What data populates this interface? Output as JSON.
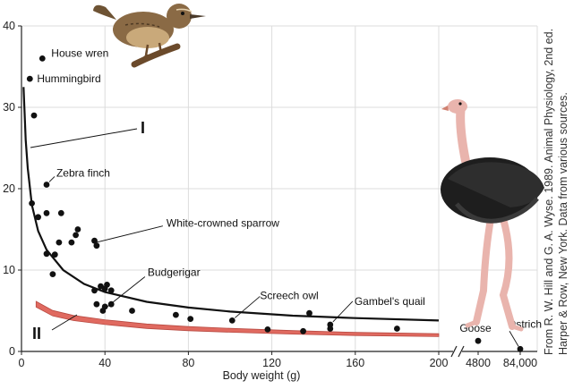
{
  "chart_data": {
    "type": "scatter",
    "xlabel": "Body weight (g)",
    "ylabel": "",
    "xlim": [
      0,
      200
    ],
    "ylim": [
      0,
      40
    ],
    "x_ticks": [
      "0",
      "40",
      "80",
      "120",
      "160",
      "200"
    ],
    "y_ticks": [
      "0",
      "10",
      "20",
      "30",
      "40"
    ],
    "extra_x_ticks": [
      "4800",
      "84,000"
    ],
    "grid": true,
    "points": [
      {
        "x": 10,
        "y": 36,
        "label": "House wren"
      },
      {
        "x": 4,
        "y": 33.5,
        "label": "Hummingbird"
      },
      {
        "x": 6,
        "y": 29
      },
      {
        "x": 12,
        "y": 20.5,
        "label": "Zebra finch"
      },
      {
        "x": 5,
        "y": 18.2
      },
      {
        "x": 8,
        "y": 16.5
      },
      {
        "x": 12,
        "y": 17
      },
      {
        "x": 19,
        "y": 17
      },
      {
        "x": 27,
        "y": 15
      },
      {
        "x": 26,
        "y": 14.3
      },
      {
        "x": 24,
        "y": 13.4
      },
      {
        "x": 18,
        "y": 13.4
      },
      {
        "x": 35,
        "y": 13.6
      },
      {
        "x": 36,
        "y": 13,
        "label": "White-crowned sparrow"
      },
      {
        "x": 12,
        "y": 12
      },
      {
        "x": 16,
        "y": 11.9
      },
      {
        "x": 15,
        "y": 9.5
      },
      {
        "x": 35,
        "y": 7.5
      },
      {
        "x": 38,
        "y": 8
      },
      {
        "x": 41,
        "y": 8.2
      },
      {
        "x": 40,
        "y": 7.7
      },
      {
        "x": 43,
        "y": 7.5
      },
      {
        "x": 36,
        "y": 5.8
      },
      {
        "x": 40,
        "y": 5.5
      },
      {
        "x": 43,
        "y": 5.8
      },
      {
        "x": 39,
        "y": 5,
        "label": "Budgerigar"
      },
      {
        "x": 53,
        "y": 5
      },
      {
        "x": 74,
        "y": 4.5
      },
      {
        "x": 81,
        "y": 4
      },
      {
        "x": 101,
        "y": 3.8,
        "label": "Screech owl"
      },
      {
        "x": 118,
        "y": 2.7
      },
      {
        "x": 135,
        "y": 2.5
      },
      {
        "x": 138,
        "y": 4.7
      },
      {
        "x": 148,
        "y": 3.3,
        "label": "Gambel's quail"
      },
      {
        "x": 148,
        "y": 2.8
      },
      {
        "x": 180,
        "y": 2.8
      }
    ],
    "extra_points": [
      {
        "x": "4800",
        "y": 1.3,
        "label": "Goose"
      },
      {
        "x": "84,000",
        "y": 0.3,
        "label": "Ostrich"
      }
    ],
    "curves": [
      {
        "name": "I",
        "description": "fitted curve",
        "x": [
          1,
          2,
          3,
          5,
          8,
          12,
          20,
          30,
          40,
          60,
          80,
          100,
          130,
          160,
          200
        ],
        "y": [
          32.5,
          26,
          22.5,
          18,
          14.8,
          12.5,
          10,
          8.3,
          7.3,
          6.1,
          5.4,
          4.9,
          4.4,
          4.1,
          3.8
        ]
      },
      {
        "name": "II",
        "description": "lower band",
        "x": [
          7,
          15,
          25,
          40,
          60,
          80,
          100,
          130,
          160,
          200
        ],
        "y": [
          5.8,
          4.7,
          4.1,
          3.6,
          3.1,
          2.8,
          2.6,
          2.35,
          2.15,
          2.0
        ]
      }
    ],
    "curve_labels": {
      "I": "I",
      "II": "II"
    },
    "source_note": "From R. W. Hill and G. A. Wyse. 1989. Animal Physiology, 2nd ed. Harper & Row, New York. Data from various sources."
  }
}
